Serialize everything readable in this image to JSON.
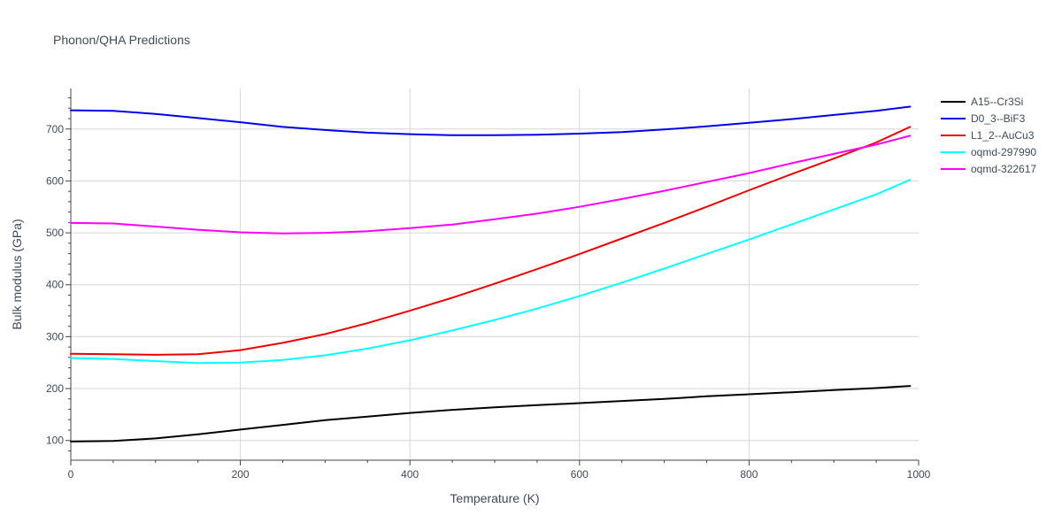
{
  "chart_data": {
    "type": "line",
    "title": "Phonon/QHA Predictions",
    "xlabel": "Temperature (K)",
    "ylabel": "Bulk modulus (GPa)",
    "xlim": [
      0,
      1000
    ],
    "ylim": [
      62,
      778
    ],
    "xticks": [
      0,
      200,
      400,
      600,
      800,
      1000
    ],
    "yticks": [
      100,
      200,
      300,
      400,
      500,
      600,
      700
    ],
    "grid": true,
    "legend_position": "top-right outside",
    "series": [
      {
        "name": "A15--Cr3Si",
        "color": "#000000",
        "x": [
          0,
          50,
          100,
          150,
          200,
          250,
          300,
          350,
          400,
          450,
          500,
          550,
          600,
          650,
          700,
          750,
          800,
          850,
          900,
          950,
          990
        ],
        "y": [
          98,
          99,
          104,
          112,
          121,
          130,
          139,
          146,
          153,
          159,
          164,
          168,
          172,
          176,
          180,
          185,
          189,
          193,
          197,
          201,
          205
        ]
      },
      {
        "name": "D0_3--BiF3",
        "color": "#0000ee",
        "x": [
          0,
          50,
          100,
          150,
          200,
          250,
          300,
          350,
          400,
          450,
          500,
          550,
          600,
          650,
          700,
          750,
          800,
          850,
          900,
          950,
          990
        ],
        "y": [
          736,
          735,
          729,
          721,
          713,
          704,
          698,
          693,
          690,
          688,
          688,
          689,
          691,
          694,
          699,
          705,
          712,
          719,
          727,
          735,
          743
        ]
      },
      {
        "name": "L1_2--AuCu3",
        "color": "#ee0000",
        "x": [
          0,
          50,
          100,
          150,
          200,
          250,
          300,
          350,
          400,
          450,
          500,
          550,
          600,
          650,
          700,
          750,
          800,
          850,
          900,
          950,
          990
        ],
        "y": [
          267,
          266,
          265,
          266,
          274,
          288,
          305,
          326,
          350,
          375,
          402,
          430,
          459,
          489,
          519,
          550,
          582,
          613,
          643,
          674,
          704
        ]
      },
      {
        "name": "oqmd-297990",
        "color": "#00ffff",
        "x": [
          0,
          50,
          100,
          150,
          200,
          250,
          300,
          350,
          400,
          450,
          500,
          550,
          600,
          650,
          700,
          750,
          800,
          850,
          900,
          950,
          990
        ],
        "y": [
          259,
          257,
          253,
          249,
          250,
          255,
          264,
          277,
          293,
          312,
          332,
          354,
          378,
          404,
          431,
          459,
          487,
          516,
          545,
          574,
          602
        ]
      },
      {
        "name": "oqmd-322617",
        "color": "#ff00ff",
        "x": [
          0,
          50,
          100,
          150,
          200,
          250,
          300,
          350,
          400,
          450,
          500,
          550,
          600,
          650,
          700,
          750,
          800,
          850,
          900,
          950,
          990
        ],
        "y": [
          519,
          518,
          512,
          506,
          501,
          499,
          500,
          503,
          509,
          516,
          526,
          537,
          550,
          565,
          581,
          598,
          615,
          634,
          652,
          670,
          687
        ]
      }
    ]
  }
}
